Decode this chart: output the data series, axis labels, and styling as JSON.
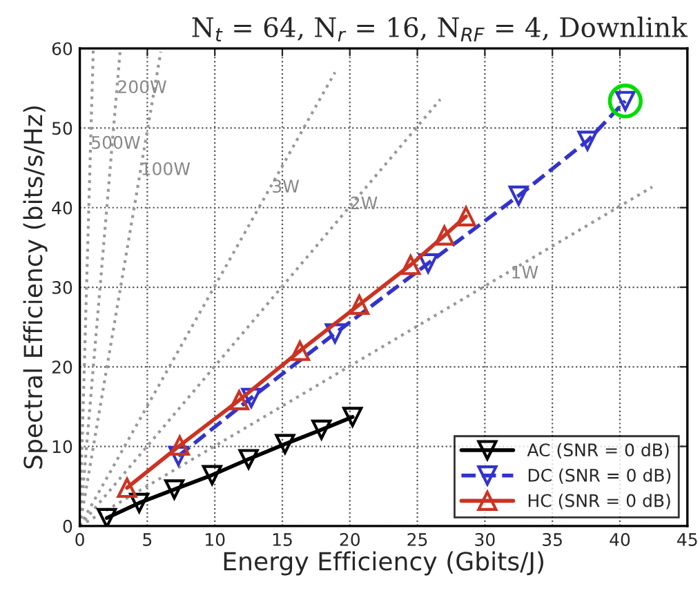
{
  "chart_data": {
    "type": "line",
    "title": "N$_{t}$ = 64, N$_{r}$ = 16, N$_{RF}$ = 4, Downlink",
    "xlabel": "Energy Efficiency (Gbits/J)",
    "ylabel": "Spectral Efficiency (bits/s/Hz)",
    "xlim": [
      0,
      45
    ],
    "ylim": [
      0,
      60
    ],
    "xticks": [
      0,
      5,
      10,
      15,
      20,
      25,
      30,
      35,
      40,
      45
    ],
    "yticks": [
      0,
      10,
      20,
      30,
      40,
      50,
      60
    ],
    "grid": true,
    "legend": "bottom right",
    "series": [
      {
        "color": "#999999",
        "line_style": "dotted",
        "marker": "none",
        "x": [
          0,
          1.0
        ],
        "values": [
          0,
          60
        ]
      },
      {
        "color": "#999999",
        "line_style": "dotted",
        "marker": "none",
        "x": [
          0,
          3.0
        ],
        "values": [
          0,
          60
        ]
      },
      {
        "color": "#999999",
        "line_style": "dotted",
        "marker": "none",
        "x": [
          0,
          6.0
        ],
        "values": [
          0,
          59.6
        ]
      },
      {
        "color": "#999999",
        "line_style": "dotted",
        "marker": "none",
        "x": [
          0,
          18.9
        ],
        "values": [
          0,
          57
        ]
      },
      {
        "color": "#999999",
        "line_style": "dotted",
        "marker": "none",
        "x": [
          0,
          26.7
        ],
        "values": [
          0,
          53.6
        ]
      },
      {
        "color": "#999999",
        "line_style": "dotted",
        "marker": "none",
        "x": [
          0,
          42.4
        ],
        "values": [
          0,
          42.6
        ]
      },
      {
        "name": "AC (SNR = 0 dB)",
        "color": "#000000",
        "line_style": "solid",
        "marker": "triangle_down",
        "x": [
          2.0,
          4.4,
          7.0,
          9.8,
          12.5,
          15.2,
          17.9,
          20.2
        ],
        "values": [
          1.0,
          2.9,
          4.6,
          6.4,
          8.4,
          10.3,
          12.1,
          13.7
        ]
      },
      {
        "name": "DC (SNR = 0 dB)",
        "color": "#3333cc",
        "line_style": "dashed",
        "marker": "triangle_down",
        "x": [
          7.3,
          12.7,
          18.9,
          25.8,
          32.5,
          37.6,
          40.4
        ],
        "values": [
          8.8,
          16.1,
          24.2,
          33.0,
          41.5,
          48.4,
          53.4
        ]
      },
      {
        "name": "HC (SNR = 0 dB)",
        "color": "#cc3322",
        "line_style": "solid",
        "marker": "triangle",
        "x": [
          3.5,
          7.4,
          11.8,
          16.3,
          20.7,
          24.5,
          27.0,
          28.6
        ],
        "values": [
          4.8,
          10.1,
          15.8,
          22.0,
          27.8,
          32.8,
          36.5,
          38.9
        ]
      }
    ],
    "annotations": [
      {
        "text": "500W",
        "x": 0.8,
        "y": 48
      },
      {
        "text": "200W",
        "x": 2.75,
        "y": 55
      },
      {
        "text": "100W",
        "x": 4.5,
        "y": 44.7
      },
      {
        "text": "3W",
        "x": 14.2,
        "y": 42.5
      },
      {
        "text": "2W",
        "x": 20.0,
        "y": 40.4
      },
      {
        "text": "1W",
        "x": 31.9,
        "y": 31.7
      }
    ]
  }
}
